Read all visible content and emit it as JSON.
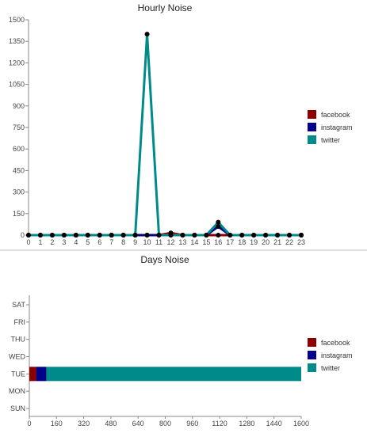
{
  "chart_data": [
    {
      "type": "line",
      "title": "Hourly Noise",
      "x": [
        0,
        1,
        2,
        3,
        4,
        5,
        6,
        7,
        8,
        9,
        10,
        11,
        12,
        13,
        14,
        15,
        16,
        17,
        18,
        19,
        20,
        21,
        22,
        23
      ],
      "ylim": [
        0,
        1500
      ],
      "yticks": [
        0,
        150,
        300,
        450,
        600,
        750,
        900,
        1050,
        1200,
        1350,
        1500
      ],
      "legend_position": "right",
      "series": [
        {
          "name": "facebook",
          "color": "#8b0000",
          "values": [
            0,
            0,
            0,
            0,
            0,
            0,
            0,
            0,
            0,
            0,
            0,
            0,
            15,
            0,
            0,
            0,
            0,
            0,
            0,
            0,
            0,
            0,
            0,
            0
          ]
        },
        {
          "name": "instagram",
          "color": "#00008b",
          "values": [
            0,
            0,
            0,
            0,
            0,
            0,
            0,
            0,
            0,
            0,
            0,
            0,
            0,
            0,
            0,
            0,
            60,
            0,
            0,
            0,
            0,
            0,
            0,
            0
          ]
        },
        {
          "name": "twitter",
          "color": "#008b8b",
          "values": [
            0,
            0,
            0,
            0,
            0,
            0,
            0,
            0,
            0,
            0,
            1400,
            0,
            0,
            0,
            0,
            0,
            90,
            0,
            0,
            0,
            0,
            0,
            0,
            0
          ]
        }
      ]
    },
    {
      "type": "bar",
      "orientation": "horizontal",
      "stacked": true,
      "title": "Days Noise",
      "categories": [
        "SUN",
        "MON",
        "TUE",
        "WED",
        "THU",
        "FRI",
        "SAT"
      ],
      "xlim": [
        0,
        1600
      ],
      "xticks": [
        0,
        160,
        320,
        480,
        640,
        800,
        960,
        1120,
        1280,
        1440,
        1600
      ],
      "legend_position": "right",
      "series": [
        {
          "name": "facebook",
          "color": "#8b0000",
          "values": [
            0,
            0,
            40,
            0,
            0,
            0,
            0
          ]
        },
        {
          "name": "instagram",
          "color": "#00008b",
          "values": [
            0,
            0,
            60,
            0,
            0,
            0,
            0
          ]
        },
        {
          "name": "twitter",
          "color": "#008b8b",
          "values": [
            0,
            0,
            1500,
            0,
            0,
            0,
            0
          ]
        }
      ]
    }
  ]
}
